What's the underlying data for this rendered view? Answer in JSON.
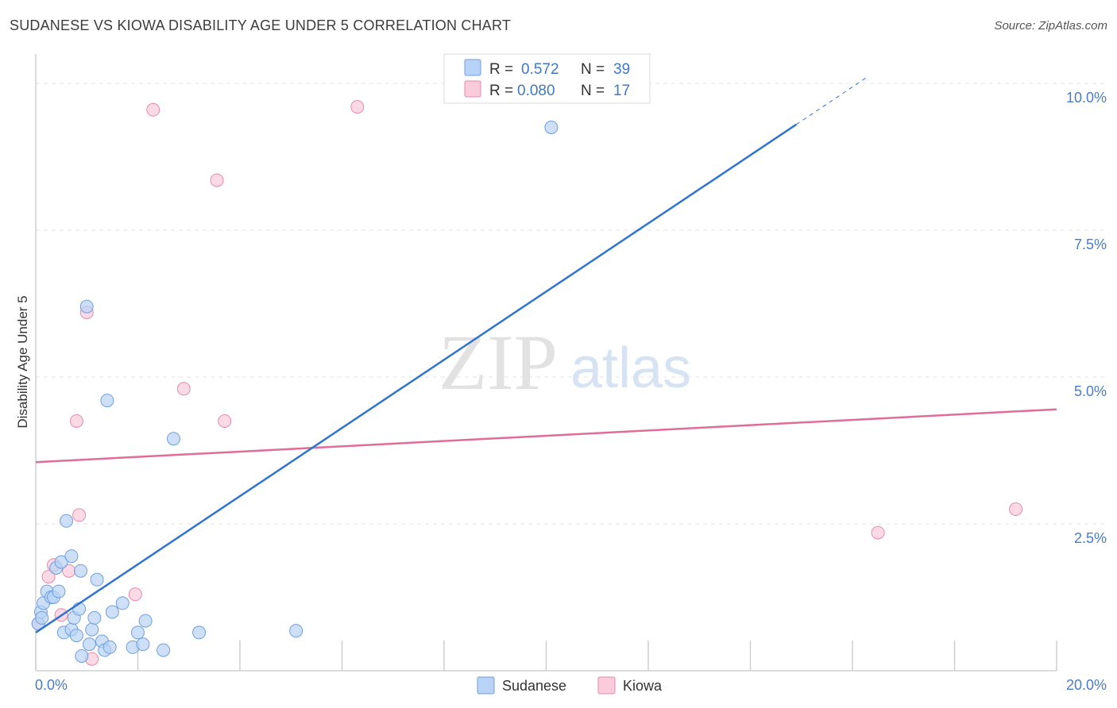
{
  "title": "SUDANESE VS KIOWA DISABILITY AGE UNDER 5 CORRELATION CHART",
  "source": "Source: ZipAtlas.com",
  "watermark": {
    "zip": "ZIP",
    "atlas": "atlas"
  },
  "colors": {
    "sudanese_fill": "#b8d3f5",
    "sudanese_stroke": "#6f9fdf",
    "sudanese_line": "#2f74d0",
    "kiowa_fill": "#f9cbdb",
    "kiowa_stroke": "#e88aab",
    "kiowa_line": "#e06c98",
    "grid": "#e3e3e3",
    "tick_text": "#4a7cc9"
  },
  "legend": {
    "rows": [
      {
        "r_label": "R =",
        "r_value": "0.572",
        "n_label": "N =",
        "n_value": "39"
      },
      {
        "r_label": "R =",
        "r_value": "0.080",
        "n_label": "N =",
        "n_value": "17"
      }
    ]
  },
  "chart_data": {
    "type": "scatter",
    "title": "SUDANESE VS KIOWA DISABILITY AGE UNDER 5 CORRELATION CHART",
    "xlabel": "",
    "ylabel": "Disability Age Under 5",
    "xlim": [
      0,
      20
    ],
    "ylim": [
      0,
      10.5
    ],
    "x_tick_labels": [
      "0.0%",
      "20.0%"
    ],
    "y_ticks": [
      2.5,
      5.0,
      7.5,
      10.0
    ],
    "y_tick_labels": [
      "2.5%",
      "5.0%",
      "7.5%",
      "10.0%"
    ],
    "grid": true,
    "legend_position": "top-center",
    "series": [
      {
        "name": "Sudanese",
        "r": 0.572,
        "n": 39,
        "trend": {
          "x0": 0.0,
          "y0": 0.65,
          "x1": 14.9,
          "y1": 9.3,
          "dash_to_x": 16.3
        },
        "points": [
          [
            0.05,
            0.8
          ],
          [
            0.1,
            1.0
          ],
          [
            0.12,
            0.9
          ],
          [
            0.15,
            1.15
          ],
          [
            0.22,
            1.35
          ],
          [
            0.3,
            1.25
          ],
          [
            0.35,
            1.25
          ],
          [
            0.4,
            1.75
          ],
          [
            0.45,
            1.35
          ],
          [
            0.5,
            1.85
          ],
          [
            0.55,
            0.65
          ],
          [
            0.6,
            2.55
          ],
          [
            0.7,
            0.7
          ],
          [
            0.7,
            1.95
          ],
          [
            0.75,
            0.9
          ],
          [
            0.8,
            0.6
          ],
          [
            0.85,
            1.05
          ],
          [
            0.88,
            1.7
          ],
          [
            0.9,
            0.25
          ],
          [
            1.0,
            6.2
          ],
          [
            1.05,
            0.45
          ],
          [
            1.1,
            0.7
          ],
          [
            1.15,
            0.9
          ],
          [
            1.2,
            1.55
          ],
          [
            1.3,
            0.5
          ],
          [
            1.35,
            0.35
          ],
          [
            1.4,
            4.6
          ],
          [
            1.45,
            0.4
          ],
          [
            1.5,
            1.0
          ],
          [
            1.7,
            1.15
          ],
          [
            1.9,
            0.4
          ],
          [
            2.0,
            0.65
          ],
          [
            2.1,
            0.45
          ],
          [
            2.15,
            0.85
          ],
          [
            2.5,
            0.35
          ],
          [
            2.7,
            3.95
          ],
          [
            3.2,
            0.65
          ],
          [
            5.1,
            0.68
          ],
          [
            10.1,
            9.25
          ]
        ]
      },
      {
        "name": "Kiowa",
        "r": 0.08,
        "n": 17,
        "trend": {
          "x0": 0.0,
          "y0": 3.55,
          "x1": 20.0,
          "y1": 4.45
        },
        "points": [
          [
            0.05,
            0.8
          ],
          [
            0.25,
            1.6
          ],
          [
            0.35,
            1.8
          ],
          [
            0.5,
            0.95
          ],
          [
            0.65,
            1.7
          ],
          [
            0.8,
            4.25
          ],
          [
            0.85,
            2.65
          ],
          [
            1.0,
            6.1
          ],
          [
            1.1,
            0.2
          ],
          [
            1.95,
            1.3
          ],
          [
            2.3,
            9.55
          ],
          [
            2.9,
            4.8
          ],
          [
            3.55,
            8.35
          ],
          [
            3.7,
            4.25
          ],
          [
            6.3,
            9.6
          ],
          [
            16.5,
            2.35
          ],
          [
            19.2,
            2.75
          ]
        ]
      }
    ]
  }
}
